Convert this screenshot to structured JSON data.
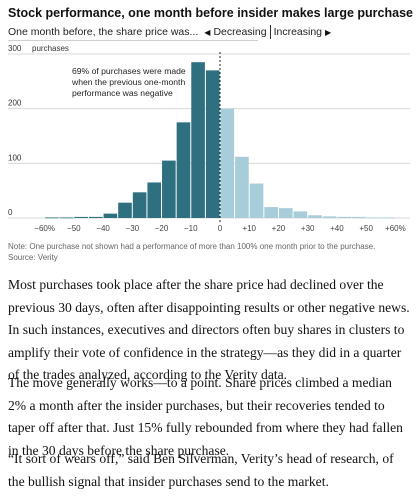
{
  "title": "Stock performance, one month before insider makes large purchase",
  "subtitle": {
    "lead": "One month before, the share price was...",
    "decreasing": "Decreasing",
    "increasing": "Increasing"
  },
  "chart_data": {
    "type": "bar",
    "title": "Stock performance, one month before insider makes large purchase",
    "xlabel": "",
    "ylabel": "purchases",
    "xlim": [
      -65,
      65
    ],
    "ylim": [
      0,
      300
    ],
    "bin_width": 5,
    "yticks": [
      "300",
      "200",
      "100",
      "0"
    ],
    "ytick_values": [
      300,
      200,
      100,
      0
    ],
    "xticks": [
      "−60%",
      "−50",
      "−40",
      "−30",
      "−20",
      "−10",
      "0",
      "+10",
      "+20",
      "+30",
      "+40",
      "+50",
      "+60%"
    ],
    "xtick_values": [
      -60,
      -50,
      -40,
      -30,
      -20,
      -10,
      0,
      10,
      20,
      30,
      40,
      50,
      60
    ],
    "bins_start": [
      -60,
      -55,
      -50,
      -45,
      -40,
      -35,
      -30,
      -25,
      -20,
      -15,
      -10,
      -5,
      0,
      5,
      10,
      15,
      20,
      25,
      30,
      35,
      40,
      45,
      50,
      55
    ],
    "values": [
      1,
      1,
      2,
      2,
      8,
      28,
      47,
      65,
      105,
      175,
      285,
      270,
      200,
      112,
      63,
      20,
      18,
      12,
      5,
      3,
      2,
      2,
      1,
      1
    ],
    "colors": {
      "decreasing": "#2e7080",
      "increasing": "#a6cdd9",
      "divider": "#222222",
      "gridline": "#d8d8d8"
    },
    "annotation": "69% of purchases were made when the previous one-month performance was negative",
    "annotation_lines": [
      "69% of purchases were made",
      "when the previous one-month",
      "performance was negative"
    ]
  },
  "note": "Note: One purchase not shown had a performance of more than 100% one month prior to the purchase.",
  "source": "Source: Verity",
  "paragraphs": [
    "Most purchases took place after the share price had declined over the previous 30 days, often after disappointing results or other negative news. In such instances, executives and directors often buy shares in clusters to amplify their vote of confidence in the strategy—as they did in a quarter of the trades analyzed, according to the Verity data.",
    "The move generally works—to a point. Share prices climbed a median 2% a month after the insider purchases, but their recoveries tended to taper off after that. Just 15% fully rebounded from where they had fallen in the 30 days before the share purchase.",
    "“It sort of wears off,” said Ben Silverman, Verity’s head of research, of the bullish signal that insider purchases send to the market."
  ]
}
